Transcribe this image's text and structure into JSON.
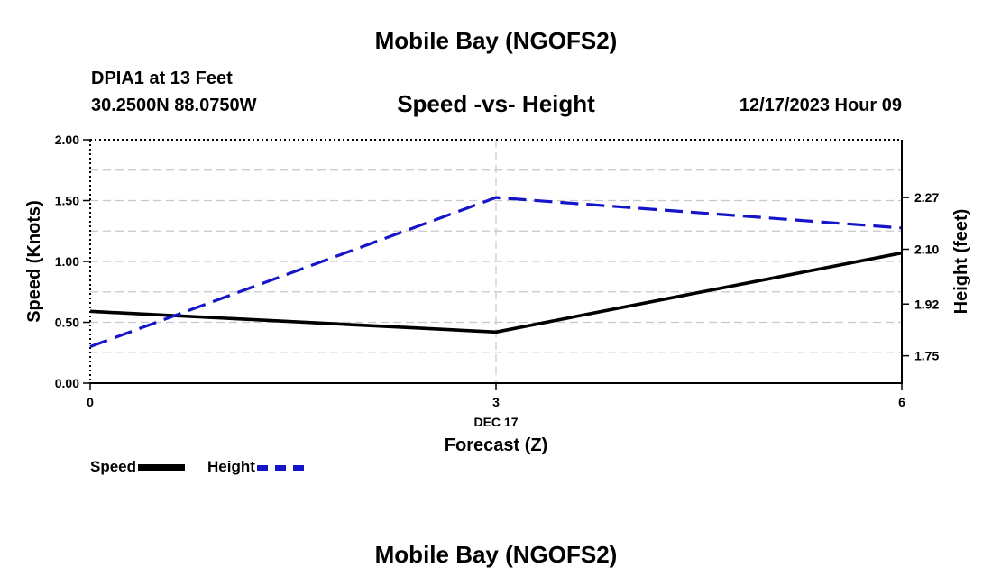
{
  "header": {
    "title": "Mobile Bay (NGOFS2)",
    "station": "DPIA1 at 13 Feet",
    "coords": "30.2500N  88.0750W",
    "datetime": "12/17/2023 Hour 09"
  },
  "footer": {
    "title": "Mobile Bay (NGOFS2)"
  },
  "legend": {
    "speed_label": "Speed",
    "height_label": "Height"
  },
  "chart_data": {
    "type": "line",
    "title": "Speed -vs- Height",
    "xlabel": "Forecast (Z)",
    "x_date_label": "DEC 17",
    "ylabel": "Speed (Knots)",
    "y2label": "Height (feet)",
    "x": [
      0,
      3,
      6
    ],
    "xlim": [
      0,
      6
    ],
    "ylim": [
      0,
      2
    ],
    "y2lim": [
      1.66,
      2.46
    ],
    "x_ticks": [
      "0",
      "3",
      "6"
    ],
    "y_ticks": [
      "0.00",
      "0.50",
      "1.00",
      "1.50",
      "2.00"
    ],
    "y2_ticks": [
      "1.75",
      "1.92",
      "2.10",
      "2.27"
    ],
    "grid": true,
    "series": [
      {
        "name": "Speed",
        "axis": "left",
        "color": "#000000",
        "style": "solid",
        "values": [
          0.59,
          0.42,
          1.07
        ]
      },
      {
        "name": "Height",
        "axis": "right",
        "color": "#1414c8",
        "style": "dashed",
        "values": [
          1.78,
          2.27,
          2.17
        ]
      }
    ]
  }
}
